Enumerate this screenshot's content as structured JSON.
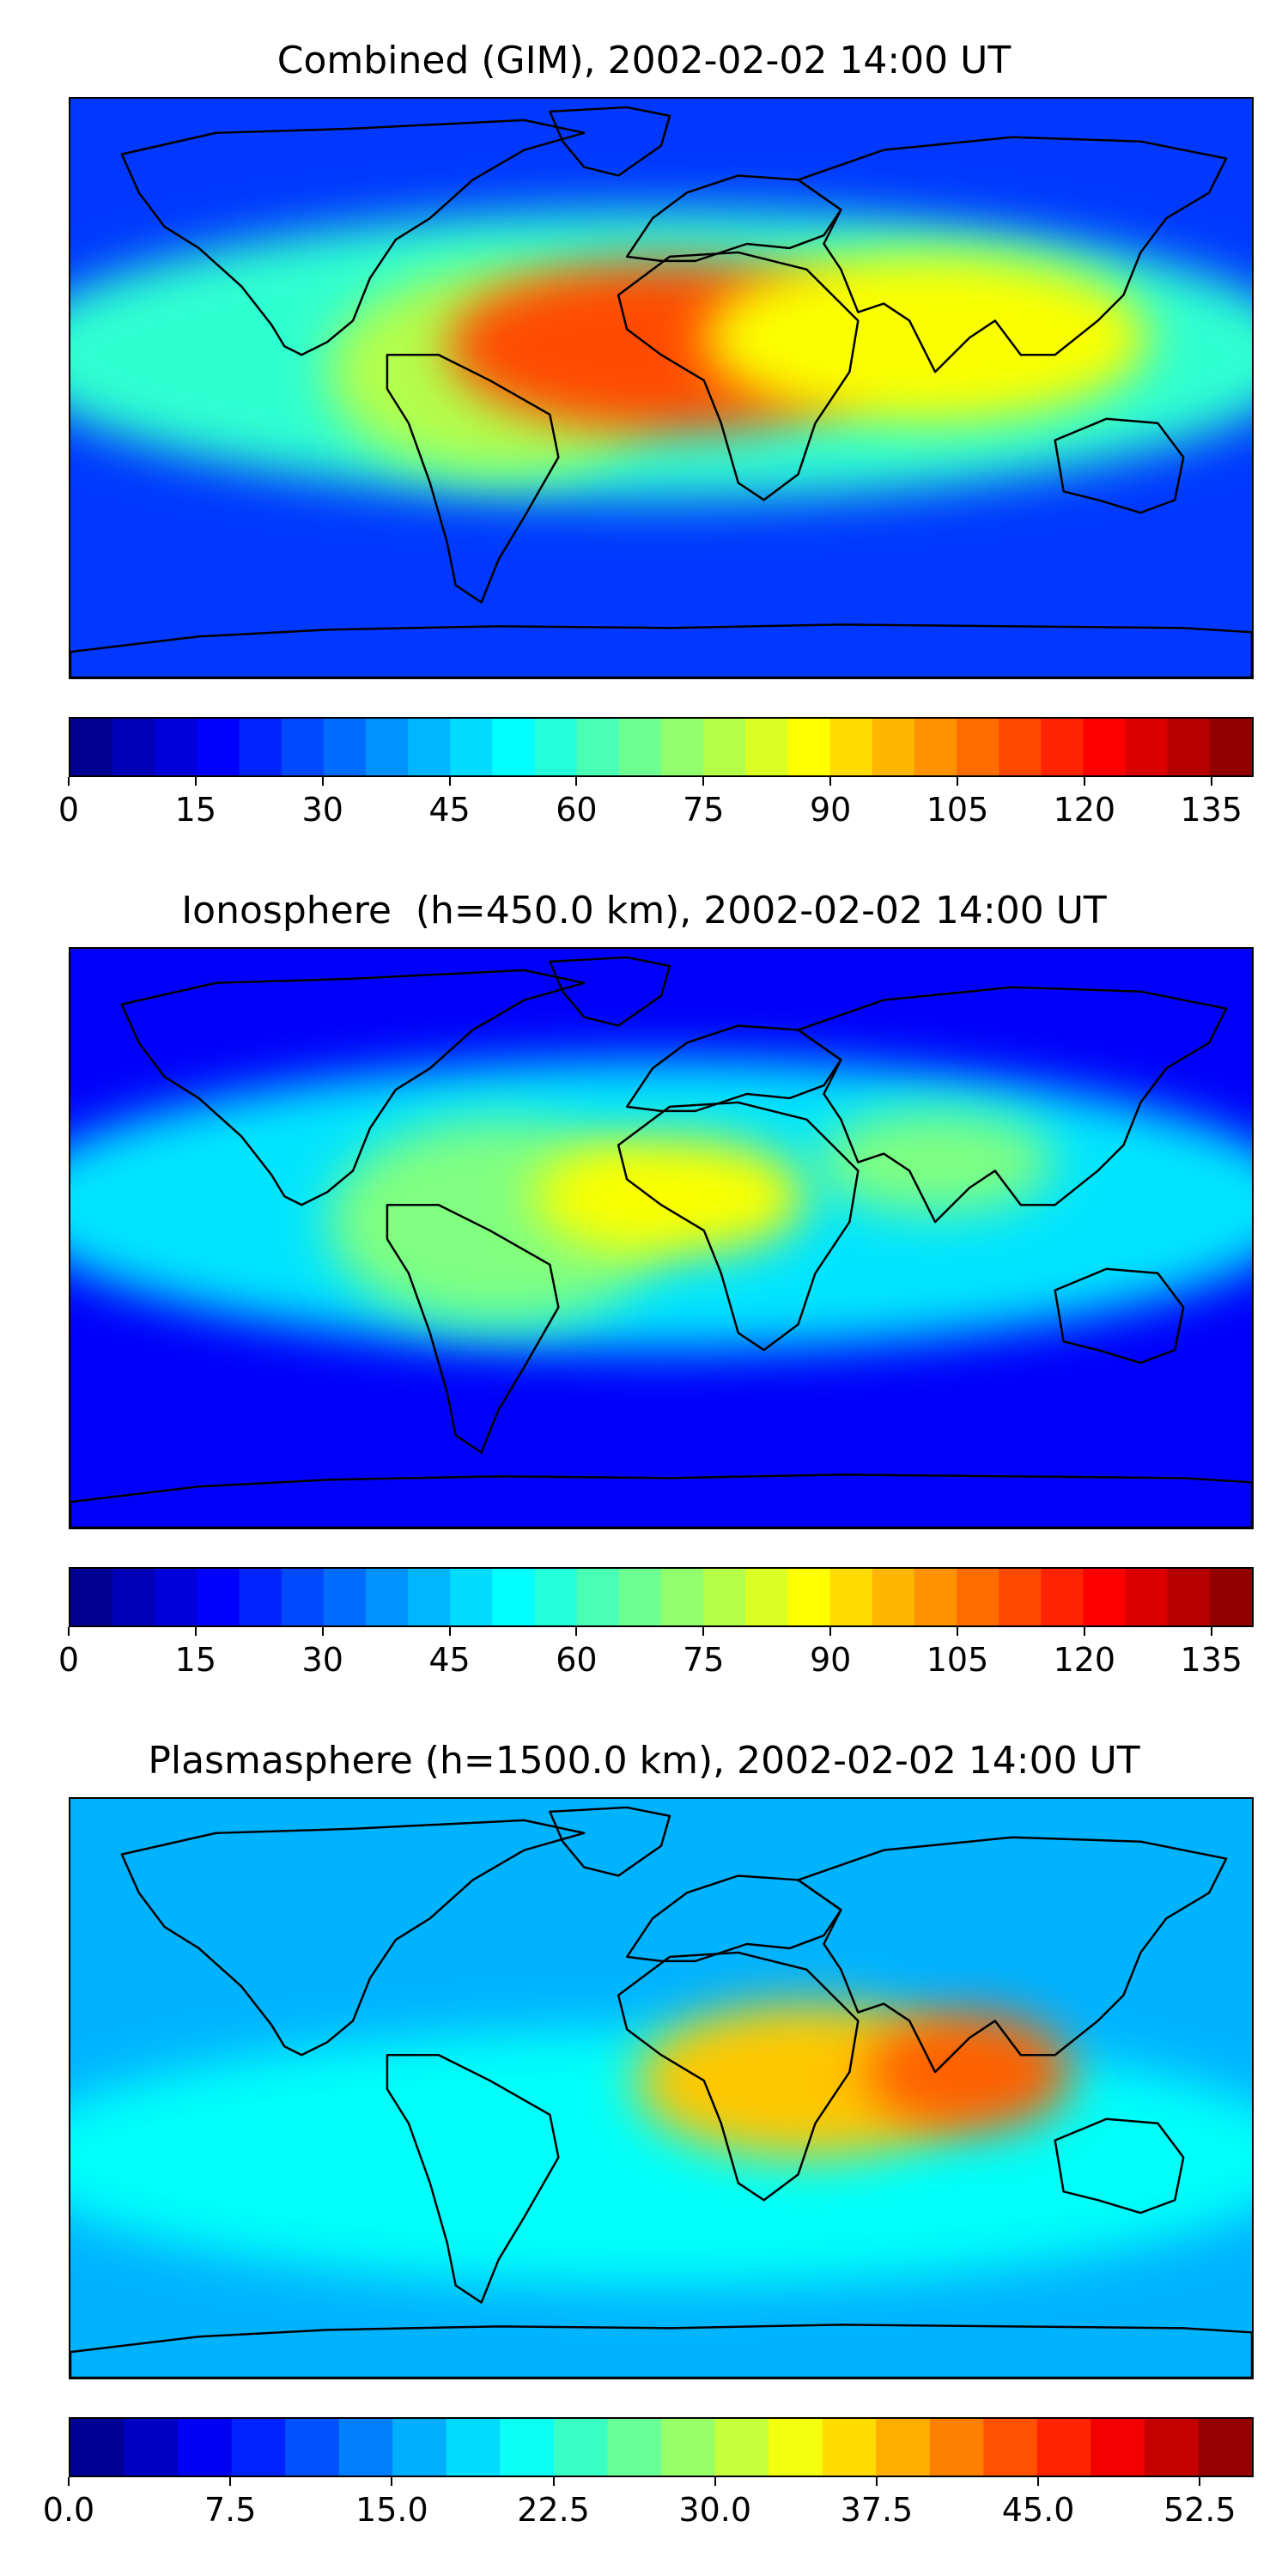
{
  "panels": [
    {
      "id": "combined",
      "title": "Combined (GIM), 2002-02-02 14:00 UT",
      "colorbar": {
        "min": 0,
        "max": 140,
        "levels": 28,
        "tick_labels": [
          "0",
          "15",
          "30",
          "45",
          "60",
          "75",
          "90",
          "105",
          "120",
          "135"
        ],
        "tick_values": [
          0,
          15,
          30,
          45,
          60,
          75,
          90,
          105,
          120,
          135
        ]
      },
      "features": [
        {
          "name": "global-background",
          "level": 0.18
        },
        {
          "name": "equatorial-band",
          "level": 0.42
        },
        {
          "name": "americas-anomaly",
          "level": 0.55
        },
        {
          "name": "atlantic-africa-peak",
          "level": 0.8
        },
        {
          "name": "indian-ocean-crest",
          "level": 0.62
        }
      ]
    },
    {
      "id": "ionosphere",
      "title": "Ionosphere  (h=450.0 km), 2002-02-02 14:00 UT",
      "colorbar": {
        "min": 0,
        "max": 140,
        "levels": 28,
        "tick_labels": [
          "0",
          "15",
          "30",
          "45",
          "60",
          "75",
          "90",
          "105",
          "120",
          "135"
        ],
        "tick_values": [
          0,
          15,
          30,
          45,
          60,
          75,
          90,
          105,
          120,
          135
        ]
      },
      "features": [
        {
          "name": "global-background",
          "level": 0.12
        },
        {
          "name": "equatorial-band",
          "level": 0.35
        },
        {
          "name": "americas-anomaly",
          "level": 0.5
        },
        {
          "name": "west-africa-peak",
          "level": 0.62
        },
        {
          "name": "asia-crest",
          "level": 0.5
        }
      ]
    },
    {
      "id": "plasmasphere",
      "title": "Plasmasphere (h=1500.0 km), 2002-02-02 14:00 UT",
      "colorbar": {
        "min": 0,
        "max": 55,
        "levels": 22,
        "tick_labels": [
          "0.0",
          "7.5",
          "15.0",
          "22.5",
          "30.0",
          "37.5",
          "45.0",
          "52.5"
        ],
        "tick_values": [
          0,
          7.5,
          15,
          22.5,
          30,
          37.5,
          45,
          52.5
        ]
      },
      "features": [
        {
          "name": "global-background",
          "level": 0.3
        },
        {
          "name": "southern-band",
          "level": 0.38
        },
        {
          "name": "africa-peak",
          "level": 0.68
        },
        {
          "name": "india-peak",
          "level": 0.78
        }
      ]
    }
  ],
  "colormap": "jet"
}
